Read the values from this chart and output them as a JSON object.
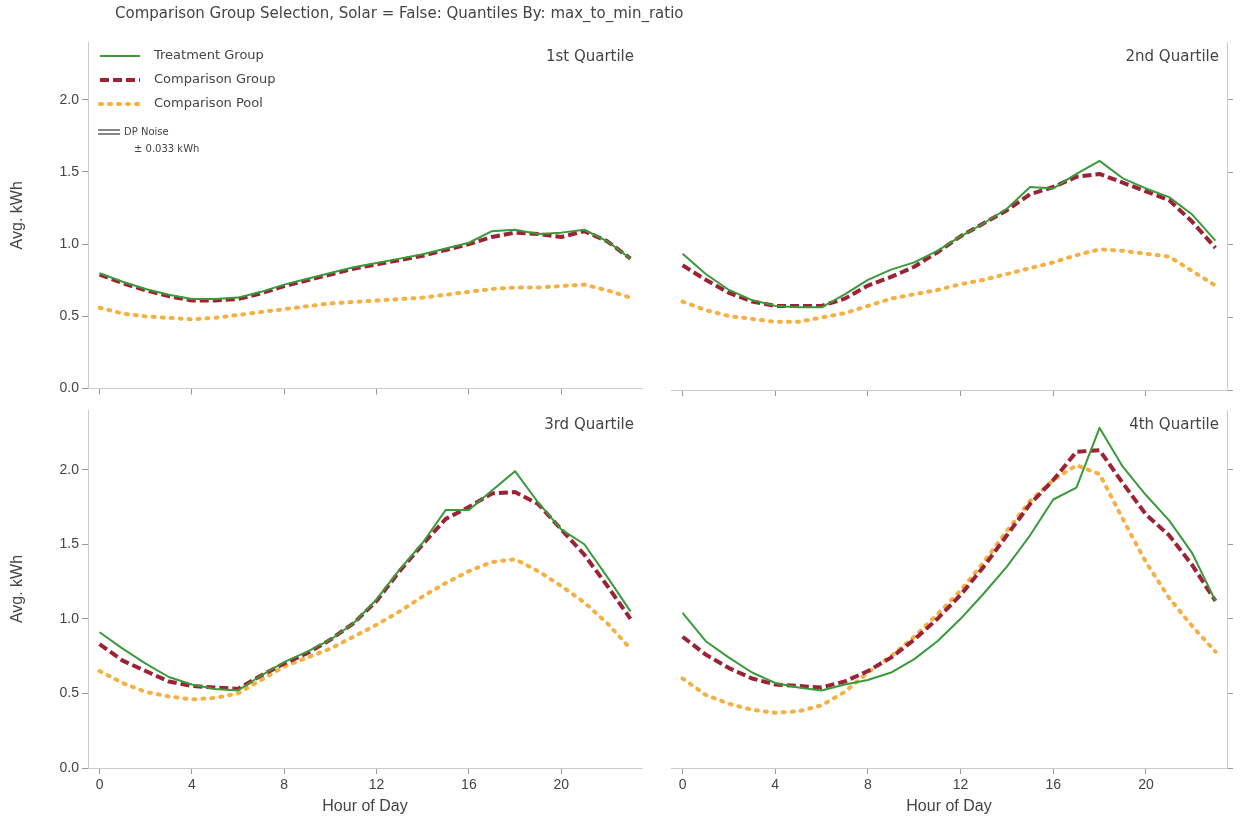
{
  "chart_data": [
    {
      "type": "line",
      "title": "1st Quartile",
      "ylabel": "Avg. kWh",
      "annotations": [
        "Comparison Group Selection, Solar = False: Quantiles By: max_to_min_ratio",
        "DP Noise",
        "± 0.033 kWh"
      ],
      "x": [
        0,
        1,
        2,
        3,
        4,
        5,
        6,
        7,
        8,
        9,
        10,
        11,
        12,
        13,
        14,
        15,
        16,
        17,
        18,
        19,
        20,
        21,
        22,
        23
      ],
      "xlim": [
        -0.5,
        23.5
      ],
      "xticks": [
        {
          "value": 0,
          "label": null
        },
        {
          "value": 4,
          "label": null
        },
        {
          "value": 8,
          "label": null
        },
        {
          "value": 12,
          "label": null
        },
        {
          "value": 16,
          "label": null
        },
        {
          "value": 20,
          "label": null
        }
      ],
      "ylim": [
        0,
        2.4
      ],
      "yticks": [
        {
          "value": 0,
          "label": "0.0"
        },
        {
          "value": 0.5,
          "label": "0.5"
        },
        {
          "value": 1,
          "label": "1.0"
        },
        {
          "value": 1.5,
          "label": "1.5"
        },
        {
          "value": 2,
          "label": "2.0"
        }
      ],
      "tick_labels": "y",
      "grid": false,
      "legend": "top left",
      "series": [
        {
          "name": "Treatment Group",
          "color": "#3a9a3a",
          "line_style": "solid",
          "values": [
            0.8,
            0.74,
            0.69,
            0.65,
            0.62,
            0.62,
            0.63,
            0.67,
            0.72,
            0.76,
            0.8,
            0.84,
            0.87,
            0.9,
            0.93,
            0.97,
            1.01,
            1.09,
            1.1,
            1.07,
            1.08,
            1.1,
            1.02,
            0.9
          ]
        },
        {
          "name": "Comparison Group",
          "color": "#9b2335",
          "line_style": "dashed",
          "values": [
            0.79,
            0.73,
            0.68,
            0.64,
            0.61,
            0.61,
            0.62,
            0.66,
            0.71,
            0.75,
            0.79,
            0.83,
            0.86,
            0.89,
            0.92,
            0.96,
            1.0,
            1.05,
            1.08,
            1.07,
            1.05,
            1.09,
            1.02,
            0.9
          ]
        },
        {
          "name": "Comparison Pool",
          "color": "#f5b041",
          "line_style": "dotted",
          "values": [
            0.56,
            0.52,
            0.5,
            0.49,
            0.48,
            0.49,
            0.51,
            0.53,
            0.55,
            0.57,
            0.59,
            0.6,
            0.61,
            0.62,
            0.63,
            0.65,
            0.67,
            0.69,
            0.7,
            0.7,
            0.71,
            0.72,
            0.68,
            0.63
          ]
        }
      ]
    },
    {
      "type": "line",
      "title": "2nd Quartile",
      "x": [
        0,
        1,
        2,
        3,
        4,
        5,
        6,
        7,
        8,
        9,
        10,
        11,
        12,
        13,
        14,
        15,
        16,
        17,
        18,
        19,
        20,
        21,
        22,
        23
      ],
      "xlim": [
        -0.5,
        23.5
      ],
      "xticks": [
        {
          "value": 0,
          "label": null
        },
        {
          "value": 4,
          "label": null
        },
        {
          "value": 8,
          "label": null
        },
        {
          "value": 12,
          "label": null
        },
        {
          "value": 16,
          "label": null
        },
        {
          "value": 20,
          "label": null
        }
      ],
      "ylim": [
        0,
        2.4
      ],
      "yticks": [
        {
          "value": 0,
          "label": null
        },
        {
          "value": 0.5,
          "label": null
        },
        {
          "value": 1,
          "label": null
        },
        {
          "value": 1.5,
          "label": null
        },
        {
          "value": 2,
          "label": null
        }
      ],
      "tick_labels": false,
      "grid": false,
      "series": [
        {
          "color": "#3a9a3a",
          "line_style": "solid",
          "values": [
            0.94,
            0.8,
            0.69,
            0.62,
            0.58,
            0.57,
            0.57,
            0.66,
            0.76,
            0.83,
            0.88,
            0.96,
            1.06,
            1.15,
            1.25,
            1.4,
            1.39,
            1.49,
            1.58,
            1.46,
            1.39,
            1.33,
            1.21,
            1.03
          ]
        },
        {
          "color": "#9b2335",
          "line_style": "dashed",
          "values": [
            0.86,
            0.76,
            0.67,
            0.61,
            0.58,
            0.58,
            0.58,
            0.63,
            0.72,
            0.78,
            0.85,
            0.95,
            1.06,
            1.15,
            1.24,
            1.35,
            1.4,
            1.47,
            1.49,
            1.43,
            1.37,
            1.31,
            1.16,
            0.98
          ]
        },
        {
          "color": "#f5b041",
          "line_style": "dotted",
          "values": [
            0.61,
            0.55,
            0.51,
            0.49,
            0.47,
            0.47,
            0.5,
            0.53,
            0.58,
            0.63,
            0.66,
            0.69,
            0.73,
            0.76,
            0.8,
            0.84,
            0.88,
            0.93,
            0.97,
            0.96,
            0.94,
            0.92,
            0.82,
            0.72
          ]
        }
      ]
    },
    {
      "type": "line",
      "title": "3rd Quartile",
      "xlabel": "Hour of Day",
      "ylabel": "Avg. kWh",
      "x": [
        0,
        1,
        2,
        3,
        4,
        5,
        6,
        7,
        8,
        9,
        10,
        11,
        12,
        13,
        14,
        15,
        16,
        17,
        18,
        19,
        20,
        21,
        22,
        23
      ],
      "xlim": [
        -0.5,
        23.5
      ],
      "xticks": [
        0,
        4,
        8,
        12,
        16,
        20
      ],
      "ylim": [
        0,
        2.4
      ],
      "yticks": [
        {
          "value": 0,
          "label": "0.0"
        },
        {
          "value": 0.5,
          "label": "0.5"
        },
        {
          "value": 1,
          "label": "1.0"
        },
        {
          "value": 1.5,
          "label": "1.5"
        },
        {
          "value": 2,
          "label": "2.0"
        }
      ],
      "grid": false,
      "series": [
        {
          "color": "#3a9a3a",
          "line_style": "solid",
          "values": [
            0.91,
            0.8,
            0.7,
            0.61,
            0.56,
            0.53,
            0.52,
            0.62,
            0.71,
            0.78,
            0.86,
            0.97,
            1.13,
            1.33,
            1.51,
            1.73,
            1.73,
            1.86,
            1.99,
            1.78,
            1.6,
            1.5,
            1.28,
            1.05
          ]
        },
        {
          "color": "#9b2335",
          "line_style": "dashed",
          "values": [
            0.83,
            0.72,
            0.65,
            0.58,
            0.55,
            0.54,
            0.53,
            0.62,
            0.7,
            0.77,
            0.86,
            0.97,
            1.12,
            1.32,
            1.5,
            1.67,
            1.75,
            1.84,
            1.85,
            1.77,
            1.6,
            1.43,
            1.22,
            1.0
          ]
        },
        {
          "color": "#f5b041",
          "line_style": "dotted",
          "values": [
            0.65,
            0.57,
            0.51,
            0.48,
            0.46,
            0.47,
            0.5,
            0.59,
            0.68,
            0.74,
            0.8,
            0.88,
            0.96,
            1.05,
            1.15,
            1.24,
            1.32,
            1.38,
            1.4,
            1.32,
            1.22,
            1.11,
            0.97,
            0.8
          ]
        }
      ]
    },
    {
      "type": "line",
      "title": "4th Quartile",
      "xlabel": "Hour of Day",
      "x": [
        0,
        1,
        2,
        3,
        4,
        5,
        6,
        7,
        8,
        9,
        10,
        11,
        12,
        13,
        14,
        15,
        16,
        17,
        18,
        19,
        20,
        21,
        22,
        23
      ],
      "xlim": [
        -0.5,
        23.5
      ],
      "xticks": [
        0,
        4,
        8,
        12,
        16,
        20
      ],
      "ylim": [
        0,
        2.4
      ],
      "yticks": [
        {
          "value": 0,
          "label": null
        },
        {
          "value": 0.5,
          "label": null
        },
        {
          "value": 1,
          "label": null
        },
        {
          "value": 1.5,
          "label": null
        },
        {
          "value": 2,
          "label": null
        }
      ],
      "tick_labels": "x",
      "grid": false,
      "series": [
        {
          "color": "#3a9a3a",
          "line_style": "solid",
          "values": [
            1.04,
            0.85,
            0.74,
            0.64,
            0.57,
            0.54,
            0.52,
            0.56,
            0.59,
            0.64,
            0.73,
            0.85,
            1.0,
            1.17,
            1.35,
            1.56,
            1.8,
            1.88,
            2.28,
            2.02,
            1.83,
            1.66,
            1.44,
            1.12
          ]
        },
        {
          "color": "#9b2335",
          "line_style": "dashed",
          "values": [
            0.88,
            0.76,
            0.67,
            0.6,
            0.56,
            0.55,
            0.54,
            0.58,
            0.65,
            0.74,
            0.86,
            1.0,
            1.16,
            1.35,
            1.56,
            1.77,
            1.93,
            2.12,
            2.13,
            1.91,
            1.7,
            1.56,
            1.36,
            1.12
          ]
        },
        {
          "color": "#f5b041",
          "line_style": "dotted",
          "values": [
            0.6,
            0.49,
            0.43,
            0.39,
            0.37,
            0.38,
            0.42,
            0.51,
            0.64,
            0.75,
            0.88,
            1.03,
            1.19,
            1.38,
            1.59,
            1.79,
            1.93,
            2.03,
            1.97,
            1.67,
            1.38,
            1.14,
            0.95,
            0.78
          ]
        }
      ]
    }
  ]
}
